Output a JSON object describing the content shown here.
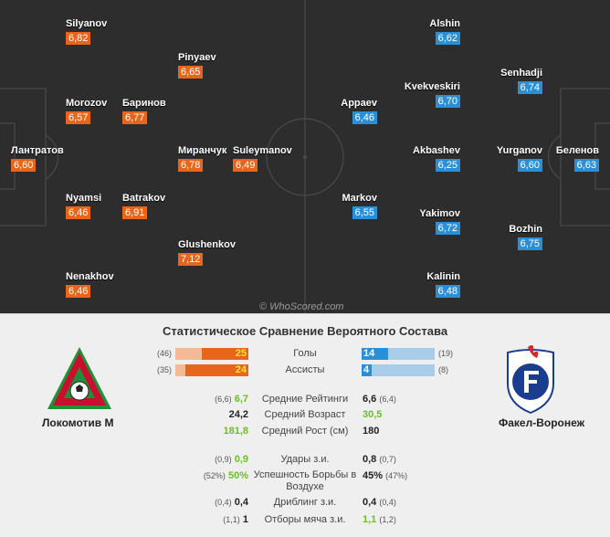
{
  "watermark": "© WhoScored.com",
  "home_players": [
    {
      "name": "Silyanov",
      "rating": "6,82"
    },
    {
      "name": "Pinyaev",
      "rating": "6,65"
    },
    {
      "name": "Morozov",
      "rating": "6,57"
    },
    {
      "name": "Баринов",
      "rating": "6,77"
    },
    {
      "name": "Лантратов",
      "rating": "6,60"
    },
    {
      "name": "Миранчук",
      "rating": "6,78"
    },
    {
      "name": "Suleymanov",
      "rating": "6,49"
    },
    {
      "name": "Nyamsi",
      "rating": "6,46"
    },
    {
      "name": "Batrakov",
      "rating": "6,91"
    },
    {
      "name": "Glushenkov",
      "rating": "7,12"
    },
    {
      "name": "Nenakhov",
      "rating": "6,46"
    }
  ],
  "away_players": [
    {
      "name": "Alshin",
      "rating": "6,62"
    },
    {
      "name": "Senhadji",
      "rating": "6,74"
    },
    {
      "name": "Kvekveskiri",
      "rating": "6,70"
    },
    {
      "name": "Appaev",
      "rating": "6,46"
    },
    {
      "name": "Akbashev",
      "rating": "6,25"
    },
    {
      "name": "Yurganov",
      "rating": "6,60"
    },
    {
      "name": "Беленов",
      "rating": "6,63"
    },
    {
      "name": "Markov",
      "rating": "6,55"
    },
    {
      "name": "Yakimov",
      "rating": "6,72"
    },
    {
      "name": "Bozhin",
      "rating": "6,75"
    },
    {
      "name": "Kalinin",
      "rating": "6,48"
    }
  ],
  "comparison": {
    "title": "Статистическое Сравнение Вероятного Состава",
    "home_team": "Локомотив М",
    "away_team": "Факел-Воронеж",
    "bars": [
      {
        "label": "Голы",
        "home_value": "25",
        "home_paren": "(46)",
        "away_value": "14",
        "away_paren": "(19)",
        "home_fraction": 0.64,
        "away_fraction": 0.36
      },
      {
        "label": "Ассисты",
        "home_value": "24",
        "home_paren": "(35)",
        "away_value": "4",
        "away_paren": "(8)",
        "home_fraction": 0.86,
        "away_fraction": 0.14
      }
    ],
    "stats": [
      {
        "label": "Средние Рейтинги",
        "home_paren": "(6,6)",
        "home_value": "6,7",
        "away_value": "6,6",
        "away_paren": "(6,4)",
        "better": "home"
      },
      {
        "label": "Средний Возраст",
        "home_paren": "",
        "home_value": "24,2",
        "away_value": "30,5",
        "away_paren": "",
        "better": "away"
      },
      {
        "label": "Средний Рост (см)",
        "home_paren": "",
        "home_value": "181,8",
        "away_value": "180",
        "away_paren": "",
        "better": "home"
      },
      {
        "label": "Удары з.и.",
        "home_paren": "(0,9)",
        "home_value": "0,9",
        "away_value": "0,8",
        "away_paren": "(0,7)",
        "better": "home"
      },
      {
        "label": "Успешность Борьбы в Воздухе",
        "home_paren": "(52%)",
        "home_value": "50%",
        "away_value": "45%",
        "away_paren": "(47%)",
        "better": "home"
      },
      {
        "label": "Дриблинг з.и.",
        "home_paren": "(0,4)",
        "home_value": "0,4",
        "away_value": "0,4",
        "away_paren": "(0,4)",
        "better": "none"
      },
      {
        "label": "Отборы мяча з.и.",
        "home_paren": "(1,1)",
        "home_value": "1",
        "away_value": "1,1",
        "away_paren": "(1,2)",
        "better": "away"
      }
    ]
  },
  "colors": {
    "home": "#e8661c",
    "home_light": "#f6b996",
    "away": "#2a8fd6",
    "away_light": "#a9cde8",
    "pitch": "#2d2d2d",
    "highlight": "#6abf27"
  }
}
